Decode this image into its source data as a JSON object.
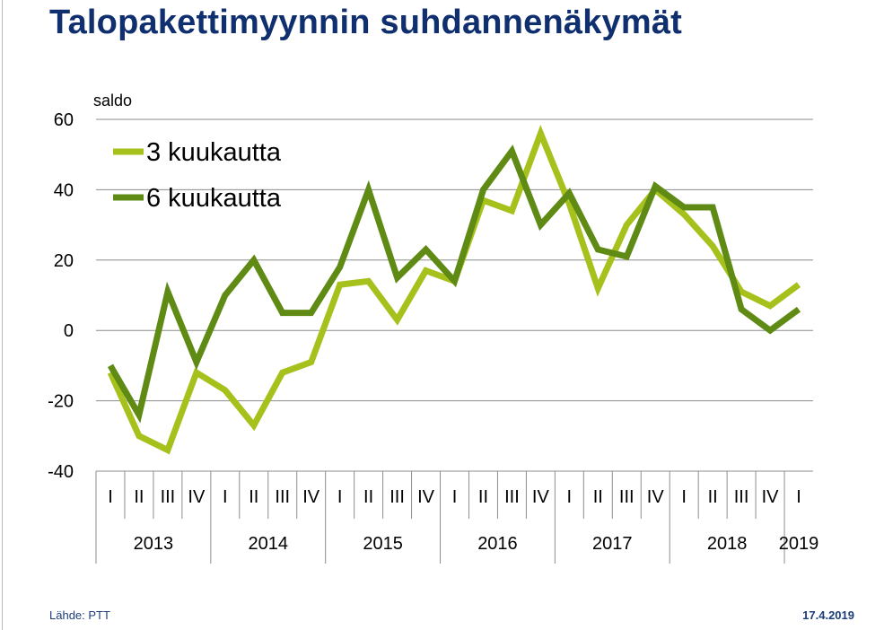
{
  "page": {
    "title": "Talopakettimyynnin suhdannenäkymät",
    "source": "Lähde: PTT",
    "date": "17.4.2019"
  },
  "chart_data": {
    "type": "line",
    "title": "Talopakettimyynnin suhdannenäkymät",
    "ylabel": "saldo",
    "xlabel": "",
    "ylim": [
      -40,
      60
    ],
    "yticks": [
      -40,
      -20,
      0,
      20,
      40,
      60
    ],
    "grid": true,
    "legend_position": "top-left",
    "categories": [
      "I",
      "II",
      "III",
      "IV",
      "I",
      "II",
      "III",
      "IV",
      "I",
      "II",
      "III",
      "IV",
      "I",
      "II",
      "III",
      "IV",
      "I",
      "II",
      "III",
      "IV",
      "I",
      "II",
      "III",
      "IV",
      "I"
    ],
    "years": [
      {
        "label": "2013",
        "quarters": 4
      },
      {
        "label": "2014",
        "quarters": 4
      },
      {
        "label": "2015",
        "quarters": 4
      },
      {
        "label": "2016",
        "quarters": 4
      },
      {
        "label": "2017",
        "quarters": 4
      },
      {
        "label": "2018",
        "quarters": 4
      },
      {
        "label": "2019",
        "quarters": 1
      }
    ],
    "series": [
      {
        "name": "3 kuukautta",
        "color": "#a6c11c",
        "values": [
          -12,
          -30,
          -34,
          -12,
          -17,
          -27,
          -12,
          -9,
          13,
          14,
          3,
          17,
          14,
          37,
          34,
          56,
          36,
          12,
          30,
          40,
          33,
          24,
          11,
          7,
          13
        ]
      },
      {
        "name": "6 kuukautta",
        "color": "#5f8a14",
        "values": [
          -10,
          -24,
          11,
          -9,
          10,
          20,
          5,
          5,
          18,
          40,
          15,
          23,
          14,
          40,
          51,
          30,
          39,
          23,
          21,
          41,
          35,
          35,
          6,
          0,
          6
        ]
      }
    ]
  }
}
